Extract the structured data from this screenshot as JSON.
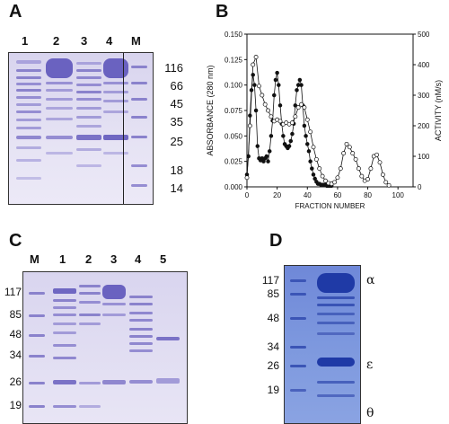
{
  "panels": {
    "A": {
      "letter": "A",
      "lanes": [
        "1",
        "2",
        "3",
        "4",
        "M"
      ],
      "markers": [
        "116",
        "66",
        "45",
        "35",
        "25",
        "18",
        "14"
      ]
    },
    "B": {
      "letter": "B",
      "chart_data": {
        "type": "line",
        "xlabel": "FRACTION NUMBER",
        "ylabel": "ABSORBANCE (280 nm)",
        "y2label": "ACTIVITY (nM/s)",
        "xlim": [
          0,
          110
        ],
        "ylim": [
          0,
          0.15
        ],
        "y2lim": [
          0,
          500
        ],
        "xticks": [
          "0",
          "20",
          "40",
          "60",
          "80",
          "100"
        ],
        "yticks": [
          "0.000",
          "0.025",
          "0.050",
          "0.075",
          "0.100",
          "0.125",
          "0.150"
        ],
        "y2ticks": [
          "0",
          "100",
          "200",
          "300",
          "400",
          "500"
        ],
        "series": [
          {
            "marker": "filled-circle",
            "axis": "left",
            "x": [
              0,
              1,
              2,
              3,
              4,
              5,
              6,
              7,
              8,
              9,
              10,
              11,
              12,
              13,
              14,
              15,
              16,
              17,
              18,
              19,
              20,
              21,
              22,
              23,
              24,
              25,
              26,
              27,
              28,
              29,
              30,
              31,
              32,
              33,
              34,
              35,
              36,
              37,
              38,
              39,
              40,
              41,
              42,
              43,
              44,
              45,
              46,
              47,
              48,
              49,
              50,
              51,
              52,
              53,
              54,
              55,
              56
            ],
            "values": [
              0.012,
              0.03,
              0.07,
              0.095,
              0.11,
              0.1,
              0.075,
              0.04,
              0.028,
              0.026,
              0.028,
              0.025,
              0.028,
              0.03,
              0.025,
              0.035,
              0.05,
              0.065,
              0.09,
              0.105,
              0.112,
              0.1,
              0.08,
              0.062,
              0.05,
              0.042,
              0.04,
              0.038,
              0.04,
              0.045,
              0.052,
              0.062,
              0.08,
              0.095,
              0.1,
              0.105,
              0.1,
              0.08,
              0.06,
              0.05,
              0.042,
              0.035,
              0.025,
              0.018,
              0.012,
              0.008,
              0.005,
              0.003,
              0.003,
              0.002,
              0.002,
              0.002,
              0.002,
              0.001,
              0.001,
              0.001,
              0.001
            ]
          },
          {
            "marker": "open-circle",
            "axis": "right",
            "x": [
              0,
              2,
              4,
              6,
              8,
              10,
              12,
              14,
              16,
              18,
              20,
              22,
              24,
              26,
              28,
              30,
              32,
              34,
              36,
              38,
              40,
              42,
              44,
              46,
              48,
              50,
              52,
              54,
              56,
              58,
              60,
              62,
              64,
              66,
              68,
              70,
              72,
              74,
              76,
              78,
              80,
              82,
              84,
              86,
              88,
              90,
              92,
              94
            ],
            "values": [
              30,
              200,
              400,
              425,
              330,
              300,
              270,
              250,
              230,
              215,
              220,
              215,
              205,
              210,
              205,
              210,
              230,
              260,
              270,
              260,
              220,
              180,
              130,
              90,
              60,
              35,
              20,
              12,
              10,
              15,
              30,
              60,
              110,
              140,
              130,
              110,
              90,
              60,
              35,
              20,
              25,
              60,
              100,
              105,
              80,
              40,
              15,
              5
            ]
          }
        ]
      }
    },
    "C": {
      "letter": "C",
      "lanes": [
        "M",
        "1",
        "2",
        "3",
        "4",
        "5"
      ],
      "markers": [
        "117",
        "85",
        "48",
        "34",
        "26",
        "19"
      ]
    },
    "D": {
      "letter": "D",
      "markers": [
        "117",
        "85",
        "48",
        "34",
        "26",
        "19"
      ],
      "greek": [
        "α",
        "ε",
        "θ"
      ]
    }
  },
  "colors": {
    "gel_band": "#5a52b8",
    "gel_bg": "#e4e1f3",
    "blot_bg": "#7d98de",
    "blot_band": "#1f3aa6"
  }
}
